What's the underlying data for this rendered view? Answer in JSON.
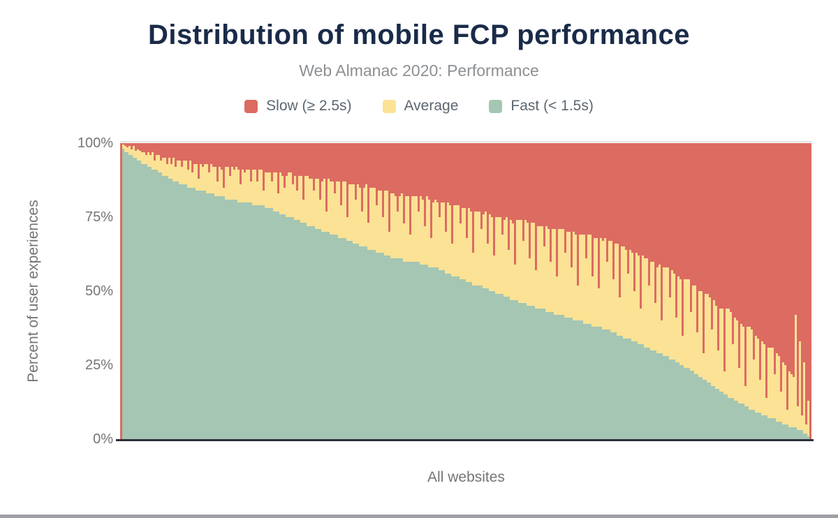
{
  "title": "Distribution of mobile FCP performance",
  "subtitle": "Web Almanac 2020: Performance",
  "legend": {
    "items": [
      {
        "label": "Slow (≥ 2.5s)",
        "color": "#dc6b62"
      },
      {
        "label": "Average",
        "color": "#fbe294"
      },
      {
        "label": "Fast (< 1.5s)",
        "color": "#a4c6b3"
      }
    ]
  },
  "y_axis": {
    "title": "Percent of user experiences",
    "ticks": [
      "100%",
      "75%",
      "50%",
      "25%",
      "0%"
    ]
  },
  "x_axis": {
    "label": "All websites"
  },
  "colors": {
    "title": "#1a2b49",
    "subtitle": "#8d9093",
    "legend_text": "#5c6670",
    "axis_text": "#757575",
    "axis_line": "#2b3036",
    "plot_top_border": "#e4e4e4",
    "bottom_rule": "#9fa0a6",
    "background": "#ffffff"
  },
  "chart_data": {
    "type": "bar",
    "stacked": true,
    "title": "Distribution of mobile FCP performance",
    "subtitle": "Web Almanac 2020: Performance",
    "xlabel": "All websites",
    "ylabel": "Percent of user experiences",
    "ylim": [
      0,
      100
    ],
    "grid": false,
    "legend_position": "top",
    "x_count": 330,
    "note": "Each bar is one website, sorted by fast share descending. slow = 100 - fast - average. First and last columns render fully red in the source image.",
    "series": [
      {
        "name": "Slow (≥ 2.5s)",
        "role": "slow",
        "color": "#dc6b62"
      },
      {
        "name": "Average",
        "role": "average",
        "color": "#fbe294"
      },
      {
        "name": "Fast (< 1.5s)",
        "role": "fast",
        "color": "#a4c6b3"
      }
    ],
    "bars_fast": [
      0,
      98,
      97,
      97,
      96,
      96,
      95,
      95,
      94,
      94,
      93,
      93,
      93,
      92,
      92,
      91,
      91,
      91,
      90,
      90,
      89,
      89,
      89,
      88,
      88,
      87,
      87,
      87,
      86,
      86,
      86,
      86,
      85,
      85,
      85,
      85,
      84,
      84,
      84,
      84,
      84,
      83,
      83,
      83,
      83,
      82,
      82,
      82,
      82,
      82,
      81,
      81,
      81,
      81,
      81,
      81,
      80,
      80,
      80,
      80,
      80,
      80,
      80,
      79,
      79,
      79,
      79,
      79,
      79,
      78,
      78,
      78,
      78,
      77,
      77,
      77,
      76,
      76,
      76,
      75,
      75,
      75,
      75,
      74,
      74,
      74,
      73,
      73,
      73,
      72,
      72,
      72,
      72,
      71,
      71,
      71,
      70,
      70,
      70,
      70,
      69,
      69,
      69,
      69,
      68,
      68,
      68,
      68,
      67,
      67,
      67,
      66,
      66,
      66,
      65,
      65,
      65,
      65,
      64,
      64,
      64,
      64,
      63,
      63,
      63,
      63,
      62,
      62,
      62,
      61,
      61,
      61,
      61,
      61,
      61,
      60,
      60,
      60,
      60,
      60,
      60,
      60,
      60,
      59,
      59,
      59,
      59,
      58,
      58,
      58,
      58,
      58,
      57,
      57,
      57,
      56,
      56,
      56,
      55,
      55,
      55,
      55,
      54,
      54,
      54,
      53,
      53,
      53,
      52,
      52,
      52,
      52,
      52,
      51,
      51,
      51,
      50,
      50,
      50,
      49,
      49,
      49,
      49,
      48,
      48,
      48,
      47,
      47,
      47,
      47,
      46,
      46,
      46,
      46,
      45,
      45,
      45,
      45,
      44,
      44,
      44,
      44,
      44,
      43,
      43,
      43,
      43,
      42,
      42,
      42,
      42,
      42,
      41,
      41,
      41,
      41,
      40,
      40,
      40,
      40,
      40,
      39,
      39,
      39,
      39,
      38,
      38,
      38,
      38,
      38,
      37,
      37,
      37,
      37,
      36,
      36,
      36,
      35,
      35,
      35,
      34,
      34,
      34,
      34,
      33,
      33,
      33,
      32,
      32,
      32,
      31,
      31,
      31,
      30,
      30,
      30,
      29,
      29,
      29,
      28,
      28,
      28,
      27,
      27,
      27,
      26,
      26,
      25,
      25,
      24,
      24,
      24,
      23,
      23,
      22,
      22,
      21,
      21,
      20,
      20,
      19,
      19,
      18,
      18,
      17,
      17,
      16,
      16,
      15,
      15,
      14,
      14,
      14,
      13,
      13,
      12,
      12,
      12,
      11,
      11,
      10,
      10,
      10,
      9,
      9,
      9,
      8,
      8,
      8,
      7,
      7,
      7,
      7,
      6,
      6,
      6,
      5,
      5,
      5,
      4,
      4,
      4,
      4,
      3,
      3,
      3,
      2,
      2,
      1,
      0
    ],
    "bars_average": [
      0,
      1.5,
      2,
      1.5,
      3,
      2,
      4,
      2.5,
      4,
      3.5,
      4,
      4,
      3,
      5,
      4,
      6,
      3,
      5,
      6,
      4,
      6,
      6,
      4,
      7,
      5,
      8,
      5,
      7,
      8,
      6,
      8,
      8,
      6,
      9,
      5,
      8,
      9,
      4,
      9,
      8,
      9,
      10,
      7,
      10,
      9,
      10,
      5,
      10,
      9,
      3,
      11,
      11,
      8,
      11,
      10,
      11,
      11,
      6,
      11,
      10,
      11,
      11,
      7,
      12,
      12,
      8,
      12,
      12,
      5,
      12,
      12,
      12,
      9,
      13,
      13,
      6,
      14,
      13,
      9,
      14,
      15,
      15,
      11,
      15,
      10,
      15,
      16,
      8,
      16,
      17,
      16,
      16,
      12,
      17,
      17,
      10,
      17,
      18,
      7,
      18,
      18,
      18,
      14,
      18,
      19,
      11,
      19,
      19,
      8,
      19,
      19,
      20,
      15,
      20,
      20,
      12,
      20,
      21,
      9,
      21,
      21,
      21,
      16,
      21,
      21,
      12,
      22,
      22,
      8,
      22,
      22,
      21,
      16,
      21,
      22,
      13,
      22,
      22,
      9,
      22,
      22,
      22,
      17,
      23,
      22,
      13,
      23,
      23,
      10,
      22,
      23,
      22,
      18,
      23,
      23,
      14,
      24,
      23,
      11,
      24,
      24,
      24,
      19,
      24,
      24,
      15,
      25,
      24,
      11,
      25,
      25,
      25,
      19,
      25,
      26,
      15,
      26,
      25,
      12,
      26,
      26,
      26,
      20,
      26,
      27,
      16,
      27,
      26,
      12,
      27,
      28,
      28,
      21,
      28,
      28,
      16,
      28,
      28,
      13,
      28,
      28,
      28,
      21,
      29,
      28,
      17,
      28,
      29,
      13,
      29,
      29,
      29,
      22,
      29,
      29,
      17,
      30,
      29,
      12,
      29,
      29,
      30,
      22,
      30,
      30,
      17,
      30,
      30,
      13,
      30,
      30,
      31,
      23,
      30,
      31,
      18,
      30,
      31,
      13,
      30,
      31,
      30,
      22,
      30,
      30,
      17,
      30,
      30,
      12,
      30,
      30,
      30,
      21,
      30,
      30,
      16,
      29,
      30,
      11,
      30,
      30,
      30,
      21,
      30,
      29,
      15,
      29,
      29,
      10,
      30,
      30,
      30,
      20,
      29,
      30,
      14,
      29,
      29,
      9,
      29,
      30,
      29,
      19,
      29,
      28,
      13,
      28,
      28,
      8,
      29,
      30,
      29,
      18,
      28,
      27,
      12,
      27,
      26,
      7,
      27,
      28,
      27,
      17,
      26,
      25,
      11,
      25,
      24,
      6,
      24,
      24,
      24,
      15,
      23,
      22,
      10,
      21,
      20,
      5,
      19,
      18,
      17,
      38,
      8,
      30,
      5,
      24,
      3,
      12,
      0
    ]
  }
}
